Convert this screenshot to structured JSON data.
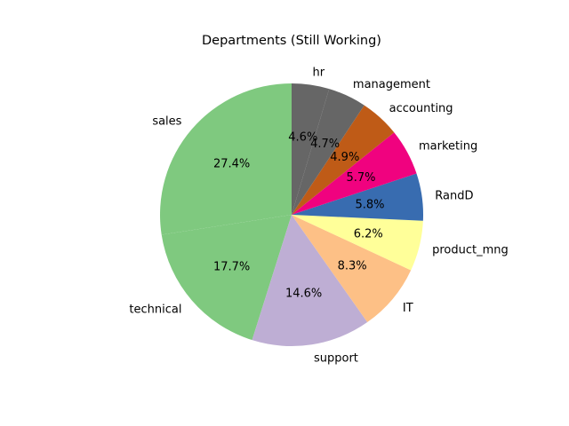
{
  "chart_data": {
    "type": "pie",
    "title": "Departments (Still Working)",
    "categories": [
      "sales",
      "technical",
      "support",
      "IT",
      "product_mng",
      "RandD",
      "marketing",
      "accounting",
      "management",
      "hr"
    ],
    "values": [
      27.4,
      17.7,
      14.6,
      8.3,
      6.2,
      5.8,
      5.7,
      4.9,
      4.7,
      4.6
    ],
    "percent_labels": [
      "27.4%",
      "17.7%",
      "14.6%",
      "8.3%",
      "6.2%",
      "5.8%",
      "5.7%",
      "4.9%",
      "4.7%",
      "4.6%"
    ],
    "colors": [
      "#7fc97f",
      "#7fc97f",
      "#beaed4",
      "#fdc086",
      "#ffff99",
      "#386cb0",
      "#f0027f",
      "#bf5b17",
      "#666666",
      "#666666"
    ],
    "start_angle_deg": 90,
    "direction": "counterclockwise",
    "legend": "none"
  }
}
